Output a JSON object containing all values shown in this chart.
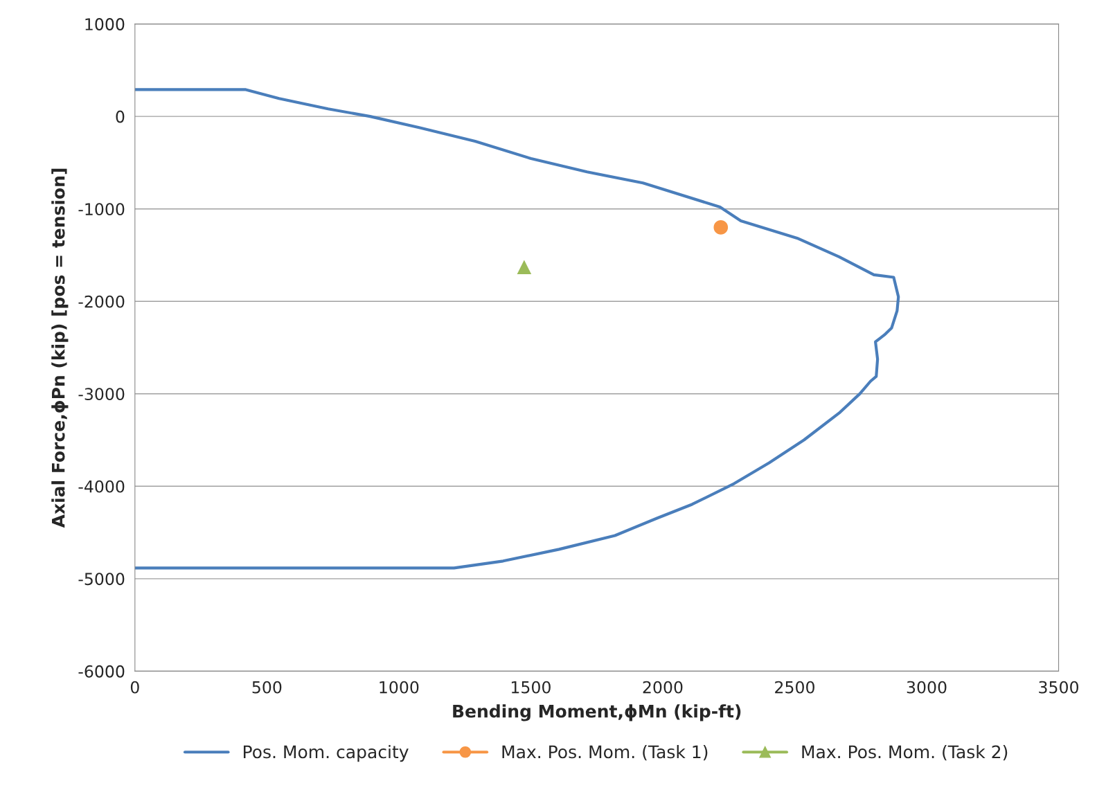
{
  "chart_data": {
    "type": "line",
    "xlabel": "Bending Moment,ϕMn (kip-ft)",
    "ylabel": "Axial Force,ϕPn (kip) [pos = tension]",
    "xlim": [
      0,
      3500
    ],
    "ylim": [
      -6000,
      1000
    ],
    "xticks": [
      0,
      500,
      1000,
      1500,
      2000,
      2500,
      3000,
      3500
    ],
    "yticks": [
      -6000,
      -5000,
      -4000,
      -3000,
      -2000,
      -1000,
      0,
      1000
    ],
    "grid": "y",
    "legend": "bottom",
    "series": [
      {
        "name": "Pos. Mom. capacity",
        "color": "#4a7ebb",
        "marker": "none",
        "x": [
          0,
          420,
          546,
          732,
          891,
          1077,
          1289,
          1501,
          1713,
          1925,
          2217,
          2296,
          2509,
          2668,
          2800,
          2875,
          2893,
          2888,
          2867,
          2840,
          2806,
          2814,
          2809,
          2787,
          2747,
          2668,
          2535,
          2403,
          2270,
          2111,
          1978,
          1819,
          1607,
          1395,
          1209,
          0
        ],
        "values": [
          290,
          290,
          194,
          82,
          0,
          -120,
          -269,
          -456,
          -600,
          -720,
          -980,
          -1129,
          -1316,
          -1518,
          -1713,
          -1740,
          -1952,
          -2102,
          -2289,
          -2363,
          -2438,
          -2625,
          -2812,
          -2865,
          -2999,
          -3209,
          -3500,
          -3747,
          -3972,
          -4196,
          -4346,
          -4533,
          -4682,
          -4809,
          -4884,
          -4884
        ]
      },
      {
        "name": "Max. Pos. Mom. (Task 1)",
        "type": "scatter",
        "color": "#f79646",
        "marker": "circle",
        "x": [
          2220
        ],
        "values": [
          -1200
        ]
      },
      {
        "name": "Max. Pos. Mom. (Task 2)",
        "type": "scatter",
        "color": "#9bbb59",
        "marker": "triangle",
        "x": [
          1475
        ],
        "values": [
          -1630
        ]
      }
    ]
  }
}
